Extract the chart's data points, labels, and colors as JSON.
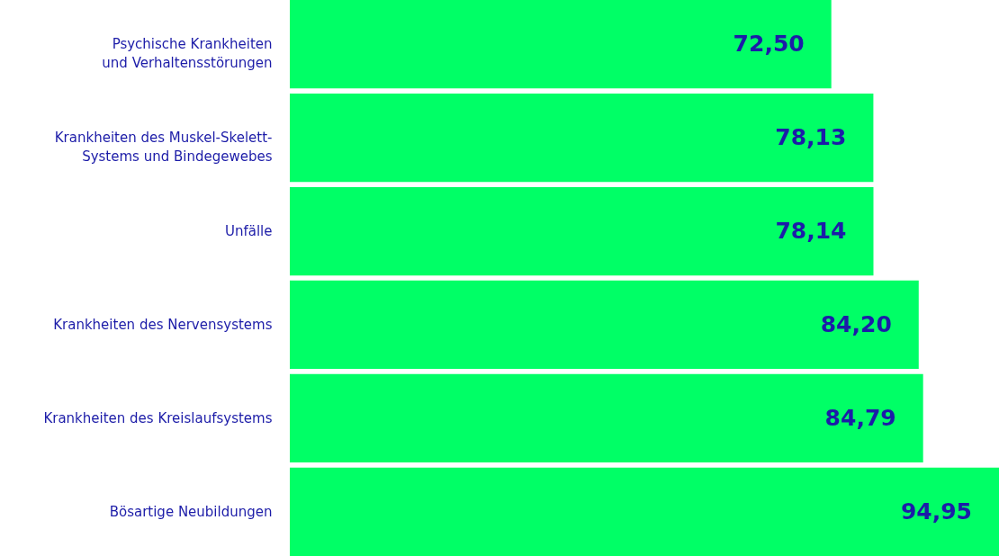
{
  "chart_data": {
    "type": "bar",
    "orientation": "horizontal",
    "categories": [
      "Psychische Krankheiten und Verhaltensstörungen",
      "Krankheiten des Muskel-Skelett-Systems und Bindegewebes",
      "Unfälle",
      "Krankheiten des Nervensystems",
      "Krankheiten des Kreislaufsystems",
      "Bösartige Neubildungen"
    ],
    "values": [
      72.5,
      78.13,
      78.14,
      84.2,
      84.79,
      94.95
    ],
    "value_labels": [
      "72,50",
      "78,13",
      "78,14",
      "84,20",
      "84,79",
      "94,95"
    ],
    "color": "#00ff66",
    "grid": false
  }
}
